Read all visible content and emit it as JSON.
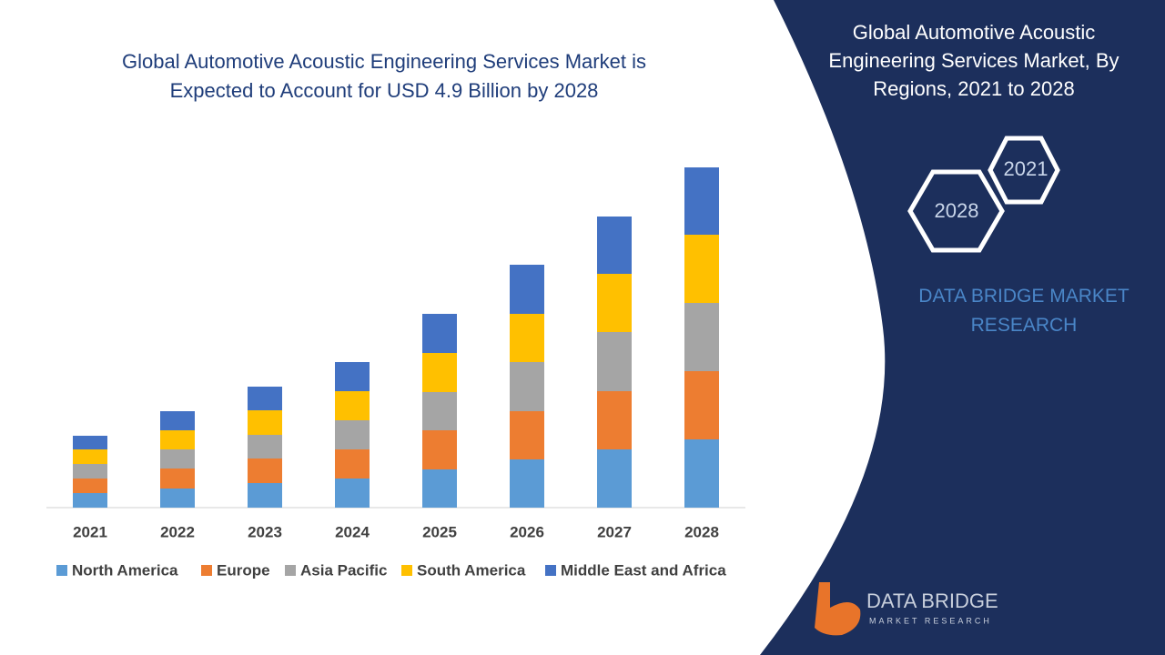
{
  "chart_data": {
    "type": "stacked_bar",
    "title": "Global Automotive Acoustic Engineering Services Market is Expected to Account for USD 4.9 Billion by 2028",
    "categories": [
      "2021",
      "2022",
      "2023",
      "2024",
      "2025",
      "2026",
      "2027",
      "2028"
    ],
    "series": [
      {
        "name": "North America",
        "color": "#5b9bd5",
        "values": [
          16,
          21,
          27,
          32,
          42,
          53,
          64,
          75
        ]
      },
      {
        "name": "Europe",
        "color": "#ed7d31",
        "values": [
          16,
          22,
          27,
          32,
          43,
          53,
          64,
          75
        ]
      },
      {
        "name": "Asia Pacific",
        "color": "#a5a5a5",
        "values": [
          16,
          21,
          26,
          32,
          42,
          54,
          65,
          75
        ]
      },
      {
        "name": "South America",
        "color": "#ffc000",
        "values": [
          16,
          21,
          27,
          32,
          43,
          53,
          64,
          75
        ]
      },
      {
        "name": "Middle East and Africa",
        "color": "#4472c4",
        "values": [
          15,
          21,
          26,
          32,
          43,
          54,
          63,
          74
        ]
      }
    ],
    "ylim": [
      0,
      400
    ],
    "legend": "bottom"
  },
  "panel": {
    "title": "Global Automotive Acoustic Engineering Services Market, By Regions, 2021 to 2028",
    "hex_start": "2021",
    "hex_end": "2028",
    "brand": "DATA BRIDGE MARKET RESEARCH",
    "logo_name": "DATA BRIDGE",
    "logo_tagline": "MARKET RESEARCH"
  }
}
